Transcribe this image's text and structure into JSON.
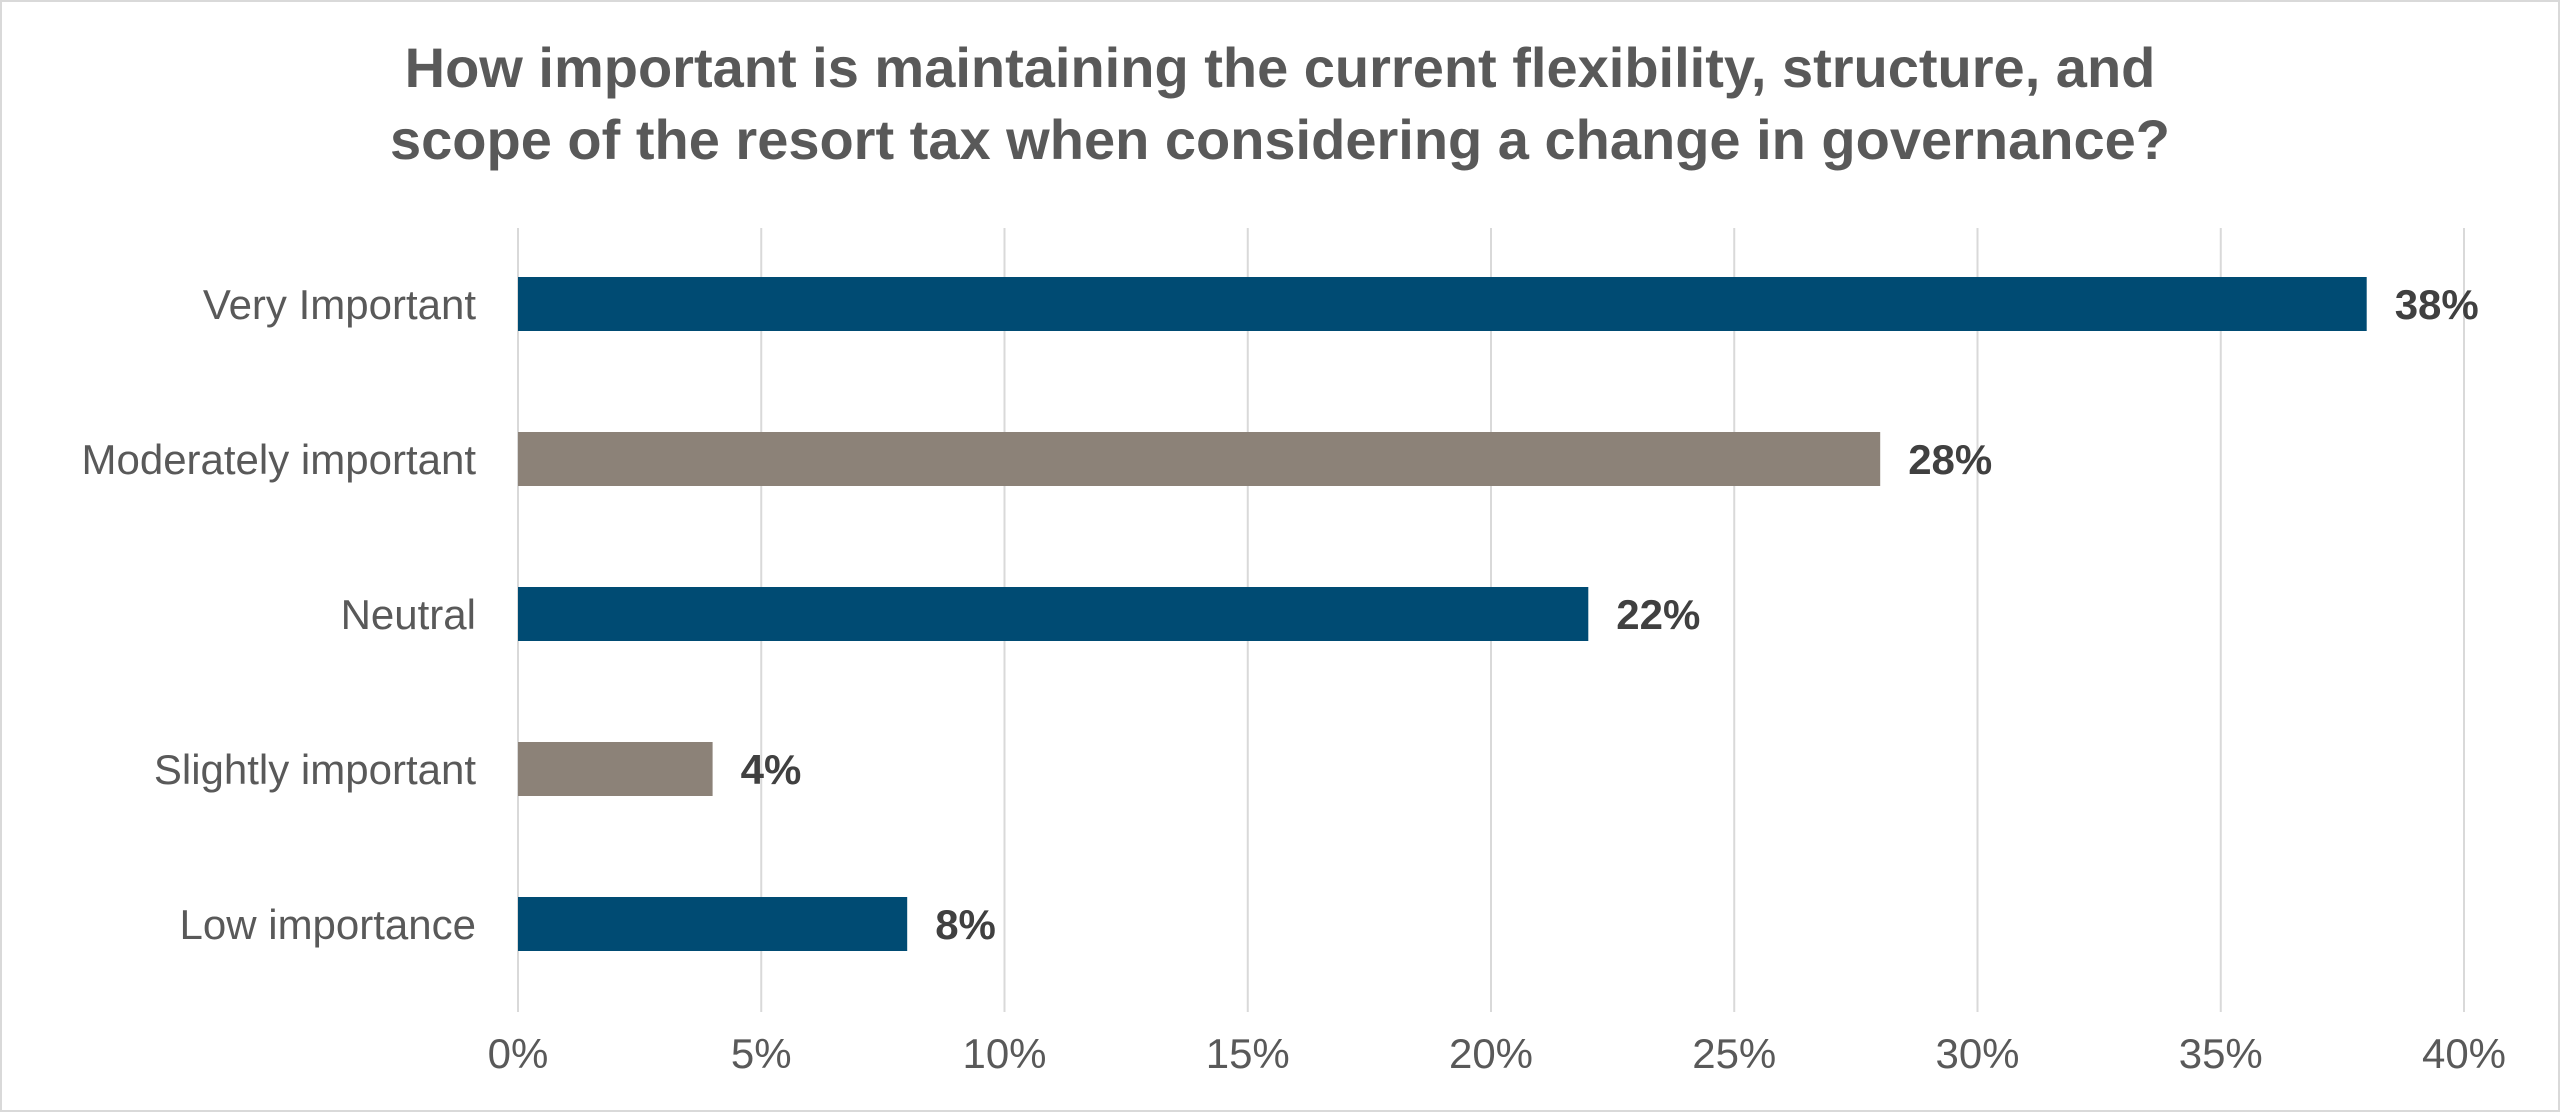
{
  "chart_data": {
    "type": "bar",
    "orientation": "horizontal",
    "title_lines": [
      "How important is maintaining the current flexibility, structure, and",
      "scope of the resort tax when considering a change in governance?"
    ],
    "title": "How important is maintaining the current flexibility, structure, and scope of the resort tax when considering a change in governance?",
    "categories": [
      "Very Important",
      "Moderately important",
      "Neutral",
      "Slightly important",
      "Low importance"
    ],
    "values": [
      38,
      28,
      22,
      4,
      8
    ],
    "data_labels": [
      "38%",
      "28%",
      "22%",
      "4%",
      "8%"
    ],
    "bar_colors": [
      "#004b73",
      "#8c8278",
      "#004b73",
      "#8c8278",
      "#004b73"
    ],
    "xlim": [
      0,
      40
    ],
    "x_ticks": [
      0,
      5,
      10,
      15,
      20,
      25,
      30,
      35,
      40
    ],
    "x_tick_labels": [
      "0%",
      "5%",
      "10%",
      "15%",
      "20%",
      "25%",
      "30%",
      "35%",
      "40%"
    ],
    "xlabel": "",
    "ylabel": "",
    "grid": true,
    "legend": "none",
    "colors": {
      "primary": "#004b73",
      "secondary": "#8c8278",
      "gridline": "#d9d9d9",
      "text": "#595959",
      "data_label": "#404040"
    }
  }
}
